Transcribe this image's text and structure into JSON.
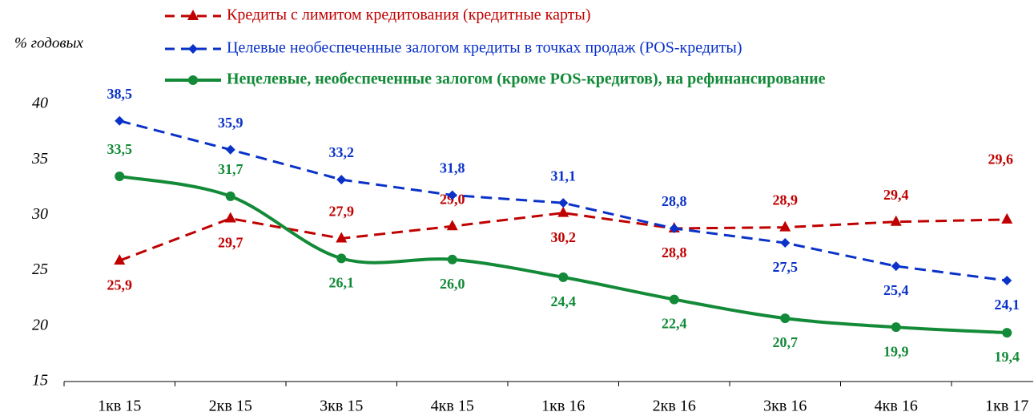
{
  "chart_data": {
    "type": "line",
    "y_label": "% годовых",
    "categories": [
      "1кв 15",
      "2кв 15",
      "3кв 15",
      "4кв 15",
      "1кв 16",
      "2кв 16",
      "3кв 16",
      "4кв 16",
      "1кв 17"
    ],
    "ylim": [
      15,
      40
    ],
    "yticks": [
      15,
      20,
      25,
      30,
      35,
      40
    ],
    "series": [
      {
        "name": "Кредиты с лимитом кредитования (кредитные карты)",
        "color": "#c00000",
        "marker": "triangle",
        "dash": true,
        "values": [
          25.9,
          29.7,
          27.9,
          29.0,
          30.2,
          28.8,
          28.9,
          29.4,
          29.6
        ],
        "value_labels": [
          "25,9",
          "29,7",
          "27,9",
          "29,0",
          "30,2",
          "28,8",
          "28,9",
          "29,4",
          "29,6"
        ]
      },
      {
        "name": "Целевые необеспеченные залогом кредиты в точках продаж (POS-кредиты)",
        "color": "#0a32c8",
        "marker": "diamond",
        "dash": true,
        "values": [
          38.5,
          35.9,
          33.2,
          31.8,
          31.1,
          28.8,
          27.5,
          25.4,
          24.1
        ],
        "value_labels": [
          "38,5",
          "35,9",
          "33,2",
          "31,8",
          "31,1",
          "28,8",
          "27,5",
          "25,4",
          "24,1"
        ]
      },
      {
        "name": "Нецелевые, необеспеченные залогом (кроме POS-кредитов), на рефинансирование",
        "color": "#138a38",
        "marker": "circle",
        "dash": false,
        "values": [
          33.5,
          31.7,
          26.1,
          26.0,
          24.4,
          22.4,
          20.7,
          19.9,
          19.4
        ],
        "value_labels": [
          "33,5",
          "31,7",
          "26,1",
          "26,0",
          "24,4",
          "22,4",
          "20,7",
          "19,9",
          "19,4"
        ]
      }
    ]
  }
}
